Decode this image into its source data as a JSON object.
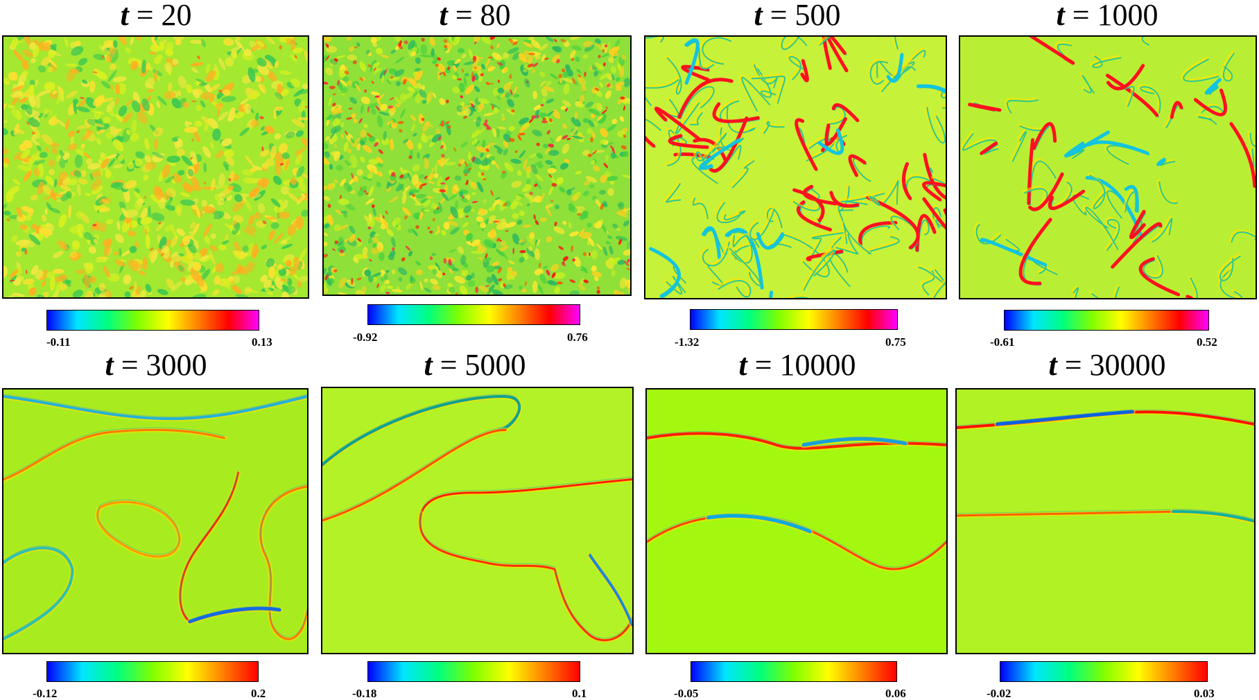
{
  "panels": [
    {
      "t_symbol": "t",
      "eq": "=",
      "t_value": "20",
      "cmin": "-0.11",
      "cmax": "0.13",
      "bg": "#a4e830",
      "pattern": "dense_soft"
    },
    {
      "t_symbol": "t",
      "eq": "=",
      "t_value": "80",
      "cmin": "-0.92",
      "cmax": "0.76",
      "bg": "#8fe038",
      "pattern": "dense_sharp"
    },
    {
      "t_symbol": "t",
      "eq": "=",
      "t_value": "500",
      "cmin": "-1.32",
      "cmax": "0.75",
      "bg": "#c6f23a",
      "pattern": "filaments"
    },
    {
      "t_symbol": "t",
      "eq": "=",
      "t_value": "1000",
      "cmin": "-0.61",
      "cmax": "0.52",
      "bg": "#b8ef34",
      "pattern": "filaments_sparse"
    },
    {
      "t_symbol": "t",
      "eq": "=",
      "t_value": "3000",
      "cmin": "-0.12",
      "cmax": "0.2",
      "bg": "#a8ec20",
      "pattern": "walls_3000"
    },
    {
      "t_symbol": "t",
      "eq": "=",
      "t_value": "5000",
      "cmin": "-0.18",
      "cmax": "0.1",
      "bg": "#b2f226",
      "pattern": "walls_5000"
    },
    {
      "t_symbol": "t",
      "eq": "=",
      "t_value": "10000",
      "cmin": "-0.05",
      "cmax": "0.06",
      "bg": "#a4f810",
      "pattern": "walls_10000"
    },
    {
      "t_symbol": "t",
      "eq": "=",
      "t_value": "30000",
      "cmin": "-0.02",
      "cmax": "0.03",
      "bg": "#b0f224",
      "pattern": "walls_30000"
    }
  ],
  "colormaps": {
    "rainbow_magenta": [
      "#0000ff",
      "#00e6ff",
      "#00ff80",
      "#80ff00",
      "#ffff00",
      "#ff8000",
      "#ff0000",
      "#ff00ff"
    ],
    "rainbow": [
      "#0000ff",
      "#00e6ff",
      "#00ff80",
      "#80ff00",
      "#ffff00",
      "#ff8000",
      "#ff0000"
    ]
  }
}
